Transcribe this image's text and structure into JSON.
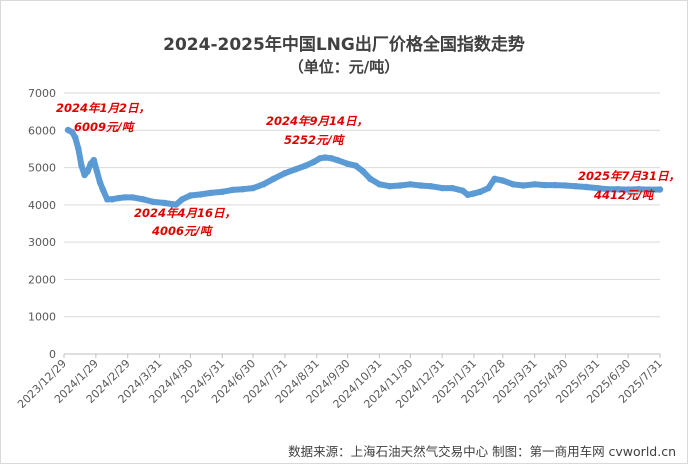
{
  "chart_data": {
    "type": "line",
    "title": "2024-2025年中国LNG出厂价格全国指数走势",
    "subtitle": "（单位：元/吨）",
    "xlabel": "",
    "ylabel": "",
    "ylim": [
      0,
      7000
    ],
    "yticks": [
      "0",
      "1000",
      "2000",
      "3000",
      "4000",
      "5000",
      "6000",
      "7000"
    ],
    "xlim": [
      "2023-12-29",
      "2025-07-31"
    ],
    "xticks": [
      "2023/12/29",
      "2024/1/29",
      "2024/2/29",
      "2024/3/31",
      "2024/4/30",
      "2024/5/31",
      "2024/6/30",
      "2024/7/31",
      "2024/8/31",
      "2024/9/30",
      "2024/10/31",
      "2024/11/30",
      "2024/12/31",
      "2025/1/31",
      "2025/2/28",
      "2025/3/31",
      "2025/4/30",
      "2025/5/31",
      "2025/6/30",
      "2025/7/31"
    ],
    "grid": true,
    "legend": "none",
    "line_color": "#5b9bd5",
    "series": [
      {
        "x": [
          "2024-01-02",
          "2024-01-06",
          "2024-01-09",
          "2024-01-12",
          "2024-01-15",
          "2024-01-18",
          "2024-01-21",
          "2024-01-24",
          "2024-01-27",
          "2024-01-30",
          "2024-02-02",
          "2024-02-05",
          "2024-02-09",
          "2024-02-14",
          "2024-02-20",
          "2024-02-26",
          "2024-03-05",
          "2024-03-15",
          "2024-03-25",
          "2024-04-05",
          "2024-04-16",
          "2024-04-22",
          "2024-04-30",
          "2024-05-10",
          "2024-05-20",
          "2024-05-31",
          "2024-06-10",
          "2024-06-20",
          "2024-06-30",
          "2024-07-10",
          "2024-07-20",
          "2024-07-31",
          "2024-08-10",
          "2024-08-20",
          "2024-08-28",
          "2024-09-03",
          "2024-09-08",
          "2024-09-14",
          "2024-09-20",
          "2024-09-30",
          "2024-10-08",
          "2024-10-15",
          "2024-10-22",
          "2024-10-31",
          "2024-11-10",
          "2024-11-20",
          "2024-11-30",
          "2024-12-10",
          "2024-12-20",
          "2024-12-31",
          "2025-01-10",
          "2025-01-20",
          "2025-01-25",
          "2025-01-30",
          "2025-02-06",
          "2025-02-14",
          "2025-02-20",
          "2025-02-28",
          "2025-03-10",
          "2025-03-20",
          "2025-03-31",
          "2025-04-10",
          "2025-04-20",
          "2025-04-30",
          "2025-05-10",
          "2025-05-20",
          "2025-05-31",
          "2025-06-10",
          "2025-06-20",
          "2025-06-30",
          "2025-07-10",
          "2025-07-20",
          "2025-07-31"
        ],
        "values": [
          6009,
          5950,
          5800,
          5500,
          5050,
          4800,
          4900,
          5100,
          5200,
          4900,
          4600,
          4400,
          4150,
          4150,
          4180,
          4200,
          4200,
          4150,
          4080,
          4050,
          4006,
          4150,
          4250,
          4280,
          4320,
          4350,
          4400,
          4420,
          4450,
          4550,
          4700,
          4850,
          4950,
          5050,
          5150,
          5250,
          5270,
          5252,
          5200,
          5100,
          5050,
          4900,
          4700,
          4550,
          4500,
          4520,
          4550,
          4520,
          4500,
          4450,
          4450,
          4380,
          4270,
          4300,
          4350,
          4450,
          4700,
          4650,
          4550,
          4520,
          4550,
          4530,
          4530,
          4520,
          4500,
          4480,
          4450,
          4420,
          4420,
          4410,
          4420,
          4410,
          4412
        ]
      }
    ],
    "annotations": [
      {
        "line1": "2024年1月2日，",
        "line2": "6009元/吨"
      },
      {
        "line1": "2024年4月16日，",
        "line2": "4006元/吨"
      },
      {
        "line1": "2024年9月14日，",
        "line2": "5252元/吨"
      },
      {
        "line1": "2025年7月31日，",
        "line2": "4412元/吨"
      }
    ],
    "source": "数据来源：上海石油天然气交易中心 制图：第一商用车网 cvworld.cn"
  }
}
